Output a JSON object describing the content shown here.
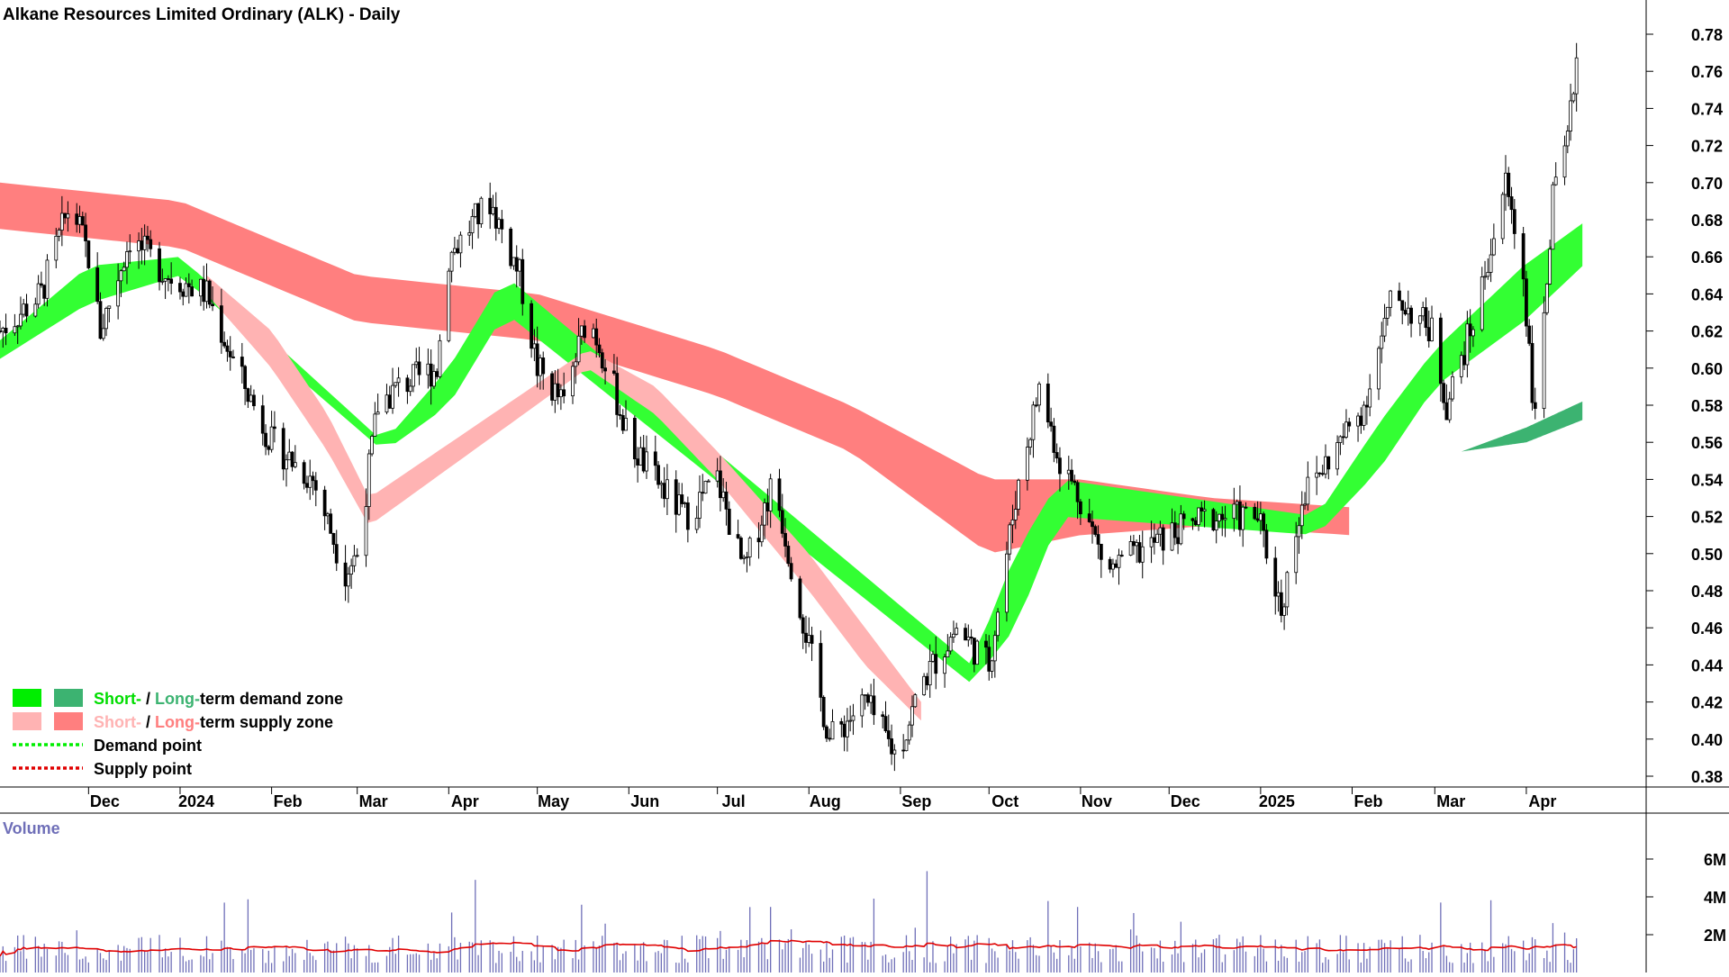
{
  "chart_data": {
    "type": "candlestick",
    "title": "Alkane Resources Limited Ordinary (ALK) - Daily",
    "price_axis": {
      "ylim": [
        0.37,
        0.79
      ],
      "ticks": [
        "0.78",
        "0.76",
        "0.74",
        "0.72",
        "0.70",
        "0.68",
        "0.66",
        "0.64",
        "0.62",
        "0.60",
        "0.58",
        "0.56",
        "0.54",
        "0.52",
        "0.50",
        "0.48",
        "0.46",
        "0.44",
        "0.42",
        "0.40",
        "0.38"
      ]
    },
    "x_axis": {
      "start": "2023-11-01",
      "end": "2025-04-30",
      "ticks": [
        {
          "label": "Dec",
          "date": "2023-12-01"
        },
        {
          "label": "2024",
          "date": "2024-01-01"
        },
        {
          "label": "Feb",
          "date": "2024-02-01"
        },
        {
          "label": "Mar",
          "date": "2024-03-01"
        },
        {
          "label": "Apr",
          "date": "2024-04-01"
        },
        {
          "label": "May",
          "date": "2024-05-01"
        },
        {
          "label": "Jun",
          "date": "2024-06-01"
        },
        {
          "label": "Jul",
          "date": "2024-07-01"
        },
        {
          "label": "Aug",
          "date": "2024-08-01"
        },
        {
          "label": "Sep",
          "date": "2024-09-01"
        },
        {
          "label": "Oct",
          "date": "2024-10-01"
        },
        {
          "label": "Nov",
          "date": "2024-11-01"
        },
        {
          "label": "Dec",
          "date": "2024-12-01"
        },
        {
          "label": "2025",
          "date": "2025-01-01"
        },
        {
          "label": "Feb",
          "date": "2025-02-01"
        },
        {
          "label": "Mar",
          "date": "2025-03-01"
        },
        {
          "label": "Apr",
          "date": "2025-04-01"
        }
      ]
    },
    "price_close_path": [
      [
        "2023-11-01",
        0.62
      ],
      [
        "2023-11-15",
        0.64
      ],
      [
        "2023-11-25",
        0.69
      ],
      [
        "2023-12-01",
        0.66
      ],
      [
        "2023-12-05",
        0.62
      ],
      [
        "2023-12-15",
        0.67
      ],
      [
        "2023-12-28",
        0.65
      ],
      [
        "2024-01-10",
        0.64
      ],
      [
        "2024-01-20",
        0.6
      ],
      [
        "2024-02-01",
        0.56
      ],
      [
        "2024-02-15",
        0.54
      ],
      [
        "2024-02-26",
        0.49
      ],
      [
        "2024-03-01",
        0.5
      ],
      [
        "2024-03-08",
        0.58
      ],
      [
        "2024-03-15",
        0.59
      ],
      [
        "2024-03-28",
        0.6
      ],
      [
        "2024-04-01",
        0.66
      ],
      [
        "2024-04-10",
        0.68
      ],
      [
        "2024-04-15",
        0.69
      ],
      [
        "2024-04-25",
        0.65
      ],
      [
        "2024-05-01",
        0.6
      ],
      [
        "2024-05-10",
        0.58
      ],
      [
        "2024-05-18",
        0.63
      ],
      [
        "2024-05-25",
        0.6
      ],
      [
        "2024-06-01",
        0.56
      ],
      [
        "2024-06-10",
        0.54
      ],
      [
        "2024-06-20",
        0.52
      ],
      [
        "2024-07-01",
        0.54
      ],
      [
        "2024-07-10",
        0.49
      ],
      [
        "2024-07-20",
        0.54
      ],
      [
        "2024-08-01",
        0.45
      ],
      [
        "2024-08-08",
        0.4
      ],
      [
        "2024-08-20",
        0.42
      ],
      [
        "2024-08-31",
        0.39
      ],
      [
        "2024-09-08",
        0.43
      ],
      [
        "2024-09-20",
        0.46
      ],
      [
        "2024-10-01",
        0.44
      ],
      [
        "2024-10-10",
        0.53
      ],
      [
        "2024-10-18",
        0.59
      ],
      [
        "2024-10-25",
        0.55
      ],
      [
        "2024-11-01",
        0.53
      ],
      [
        "2024-11-10",
        0.49
      ],
      [
        "2024-11-20",
        0.5
      ],
      [
        "2024-12-01",
        0.51
      ],
      [
        "2024-12-15",
        0.52
      ],
      [
        "2024-12-31",
        0.52
      ],
      [
        "2025-01-08",
        0.47
      ],
      [
        "2025-01-15",
        0.53
      ],
      [
        "2025-01-28",
        0.56
      ],
      [
        "2025-02-05",
        0.58
      ],
      [
        "2025-02-15",
        0.64
      ],
      [
        "2025-02-28",
        0.62
      ],
      [
        "2025-03-05",
        0.58
      ],
      [
        "2025-03-15",
        0.63
      ],
      [
        "2025-03-25",
        0.7
      ],
      [
        "2025-03-31",
        0.65
      ],
      [
        "2025-04-04",
        0.57
      ],
      [
        "2025-04-10",
        0.69
      ],
      [
        "2025-04-15",
        0.72
      ],
      [
        "2025-04-18",
        0.77
      ]
    ],
    "zones": [
      {
        "name": "Long-term supply zone",
        "color": "#ff7f7f",
        "upper": [
          [
            "2023-11-01",
            0.7
          ],
          [
            "2024-01-01",
            0.69
          ],
          [
            "2024-03-01",
            0.65
          ],
          [
            "2024-05-01",
            0.64
          ],
          [
            "2024-07-01",
            0.61
          ],
          [
            "2024-08-15",
            0.58
          ],
          [
            "2024-10-01",
            0.54
          ],
          [
            "2024-11-01",
            0.54
          ],
          [
            "2024-12-15",
            0.53
          ],
          [
            "2025-01-31",
            0.525
          ]
        ],
        "lower": [
          [
            "2023-11-01",
            0.675
          ],
          [
            "2024-01-01",
            0.665
          ],
          [
            "2024-03-01",
            0.625
          ],
          [
            "2024-05-01",
            0.615
          ],
          [
            "2024-07-01",
            0.585
          ],
          [
            "2024-08-15",
            0.555
          ],
          [
            "2024-10-01",
            0.5
          ],
          [
            "2024-11-01",
            0.51
          ],
          [
            "2024-12-15",
            0.515
          ],
          [
            "2025-01-31",
            0.51
          ]
        ]
      },
      {
        "name": "Long-term demand zone",
        "color": "#3cb371",
        "upper": [
          [
            "2025-03-10",
            0.555
          ],
          [
            "2025-04-01",
            0.568
          ],
          [
            "2025-04-20",
            0.582
          ]
        ],
        "lower": [
          [
            "2025-03-10",
            0.555
          ],
          [
            "2025-04-01",
            0.56
          ],
          [
            "2025-04-20",
            0.572
          ]
        ]
      },
      {
        "name": "Short-term demand zone",
        "color": "#33ff33",
        "upper": [
          [
            "2023-11-01",
            0.615
          ],
          [
            "2023-12-01",
            0.655
          ],
          [
            "2024-01-01",
            0.66
          ],
          [
            "2024-03-10",
            0.56
          ],
          [
            "2024-04-01",
            0.6
          ],
          [
            "2024-04-20",
            0.65
          ],
          [
            "2024-09-25",
            0.44
          ],
          [
            "2024-10-10",
            0.5
          ],
          [
            "2024-10-25",
            0.54
          ],
          [
            "2025-01-20",
            0.52
          ],
          [
            "2025-02-10",
            0.57
          ],
          [
            "2025-03-01",
            0.61
          ],
          [
            "2025-03-31",
            0.655
          ],
          [
            "2025-04-20",
            0.678
          ]
        ],
        "lower": [
          [
            "2023-11-01",
            0.605
          ],
          [
            "2023-12-01",
            0.635
          ],
          [
            "2024-01-01",
            0.65
          ],
          [
            "2024-03-10",
            0.555
          ],
          [
            "2024-04-01",
            0.58
          ],
          [
            "2024-04-20",
            0.63
          ],
          [
            "2024-09-25",
            0.43
          ],
          [
            "2024-10-10",
            0.46
          ],
          [
            "2024-10-25",
            0.52
          ],
          [
            "2025-01-20",
            0.51
          ],
          [
            "2025-02-10",
            0.545
          ],
          [
            "2025-03-01",
            0.59
          ],
          [
            "2025-03-31",
            0.625
          ],
          [
            "2025-04-20",
            0.655
          ]
        ]
      },
      {
        "name": "Short-term supply zone",
        "color": "#ffb3b3",
        "upper": [
          [
            "2024-01-10",
            0.65
          ],
          [
            "2024-02-01",
            0.62
          ],
          [
            "2024-02-20",
            0.575
          ],
          [
            "2024-03-05",
            0.53
          ],
          [
            "2024-05-18",
            0.61
          ],
          [
            "2024-06-10",
            0.59
          ],
          [
            "2024-07-01",
            0.555
          ],
          [
            "2024-08-01",
            0.5
          ],
          [
            "2024-08-20",
            0.46
          ],
          [
            "2024-09-08",
            0.42
          ]
        ],
        "lower": [
          [
            "2024-01-10",
            0.64
          ],
          [
            "2024-02-01",
            0.6
          ],
          [
            "2024-02-20",
            0.555
          ],
          [
            "2024-03-05",
            0.515
          ],
          [
            "2024-05-18",
            0.6
          ],
          [
            "2024-06-10",
            0.575
          ],
          [
            "2024-07-01",
            0.54
          ],
          [
            "2024-08-01",
            0.48
          ],
          [
            "2024-08-20",
            0.44
          ],
          [
            "2024-09-08",
            0.41
          ]
        ]
      }
    ],
    "volume_axis": {
      "ylim": [
        0,
        8000000
      ],
      "ticks": [
        {
          "label": "2M",
          "value": 2000000
        },
        {
          "label": "4M",
          "value": 4000000
        },
        {
          "label": "6M",
          "value": 6000000
        }
      ]
    },
    "volume_label": "Volume",
    "volume_ma_color": "#e00000",
    "volume_bar_color": "#6f6fb8",
    "legend": [
      {
        "swatches": [
          "#00ee00",
          "#3cb371"
        ],
        "short": "Short-",
        "sep": " / ",
        "long": "Long-",
        "rest": "term demand zone",
        "short_color": "#00dd00",
        "long_color": "#3cb371"
      },
      {
        "swatches": [
          "#ffb3b3",
          "#ff7f7f"
        ],
        "short": "Short-",
        "sep": " / ",
        "long": "Long-",
        "rest": "term supply zone",
        "short_color": "#ffb3b3",
        "long_color": "#ff7f7f"
      },
      {
        "line_color": "#00ee00",
        "text": "Demand point"
      },
      {
        "line_color": "#e00000",
        "text": "Supply point"
      }
    ]
  }
}
